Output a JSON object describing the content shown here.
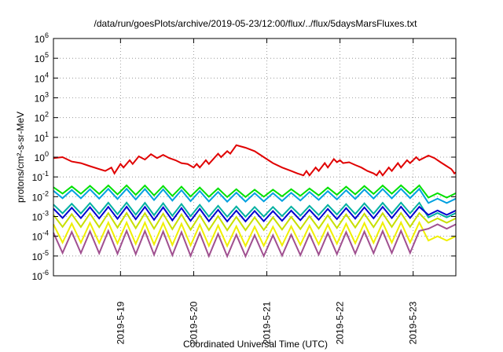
{
  "chart_data": {
    "type": "line",
    "title": "/data/run/goesPlots/archive/2019-05-23/12:00/flux/../flux/5daysMarsFluxes.txt",
    "xlabel": "Coordinated Universal Time (UTC)",
    "ylabel": "protons/cm²-s-sr-MeV",
    "y_scale": "log",
    "ylim": [
      1e-06,
      1000000.0
    ],
    "y_ticks": [
      {
        "value": 1e-06,
        "base": "10",
        "exp": "-6"
      },
      {
        "value": 1e-05,
        "base": "10",
        "exp": "-5"
      },
      {
        "value": 0.0001,
        "base": "10",
        "exp": "-4"
      },
      {
        "value": 0.001,
        "base": "10",
        "exp": "-3"
      },
      {
        "value": 0.01,
        "base": "10",
        "exp": "-2"
      },
      {
        "value": 0.1,
        "base": "10",
        "exp": "-1"
      },
      {
        "value": 1,
        "base": "10",
        "exp": "0"
      },
      {
        "value": 10,
        "base": "10",
        "exp": "1"
      },
      {
        "value": 100,
        "base": "10",
        "exp": "2"
      },
      {
        "value": 1000,
        "base": "10",
        "exp": "3"
      },
      {
        "value": 10000,
        "base": "10",
        "exp": "4"
      },
      {
        "value": 100000,
        "base": "10",
        "exp": "5"
      },
      {
        "value": 1000000,
        "base": "10",
        "exp": "6"
      }
    ],
    "xlim": [
      "2019-05-18 02:00",
      "2019-05-23 14:00"
    ],
    "x_ticks": [
      "2019-5-19",
      "2019-5-20",
      "2019-5-21",
      "2019-5-22",
      "2019-5-23"
    ],
    "grid": true,
    "legend": "none",
    "series": [
      {
        "color": "#e00000",
        "width": 2,
        "points": [
          [
            "2019-05-18 02:00",
            0.9
          ],
          [
            "2019-05-18 05:00",
            1.0
          ],
          [
            "2019-05-18 08:00",
            0.6
          ],
          [
            "2019-05-18 11:00",
            0.5
          ],
          [
            "2019-05-18 14:00",
            0.35
          ],
          [
            "2019-05-18 17:00",
            0.25
          ],
          [
            "2019-05-18 19:00",
            0.2
          ],
          [
            "2019-05-18 21:00",
            0.3
          ],
          [
            "2019-05-18 22:00",
            0.15
          ],
          [
            "2019-05-19 00:00",
            0.45
          ],
          [
            "2019-05-19 01:00",
            0.3
          ],
          [
            "2019-05-19 03:00",
            0.7
          ],
          [
            "2019-05-19 04:00",
            0.45
          ],
          [
            "2019-05-19 06:00",
            1.1
          ],
          [
            "2019-05-19 08:00",
            0.75
          ],
          [
            "2019-05-19 10:00",
            1.4
          ],
          [
            "2019-05-19 12:00",
            0.9
          ],
          [
            "2019-05-19 14:00",
            1.3
          ],
          [
            "2019-05-19 16:00",
            0.9
          ],
          [
            "2019-05-19 18:00",
            0.7
          ],
          [
            "2019-05-19 20:00",
            0.5
          ],
          [
            "2019-05-19 22:00",
            0.45
          ],
          [
            "2019-05-20 00:00",
            0.3
          ],
          [
            "2019-05-20 01:00",
            0.45
          ],
          [
            "2019-05-20 02:00",
            0.3
          ],
          [
            "2019-05-20 04:00",
            0.7
          ],
          [
            "2019-05-20 05:00",
            0.45
          ],
          [
            "2019-05-20 08:00",
            1.5
          ],
          [
            "2019-05-20 09:00",
            1.0
          ],
          [
            "2019-05-20 11:00",
            2.0
          ],
          [
            "2019-05-20 12:00",
            1.5
          ],
          [
            "2019-05-20 14:00",
            4.0
          ],
          [
            "2019-05-20 17:00",
            3.0
          ],
          [
            "2019-05-20 20:00",
            2.0
          ],
          [
            "2019-05-20 23:00",
            1.0
          ],
          [
            "2019-05-21 02:00",
            0.5
          ],
          [
            "2019-05-21 05:00",
            0.3
          ],
          [
            "2019-05-21 08:00",
            0.2
          ],
          [
            "2019-05-21 10:00",
            0.15
          ],
          [
            "2019-05-21 12:00",
            0.12
          ],
          [
            "2019-05-21 13:00",
            0.2
          ],
          [
            "2019-05-21 14:00",
            0.12
          ],
          [
            "2019-05-21 16:00",
            0.3
          ],
          [
            "2019-05-21 17:00",
            0.2
          ],
          [
            "2019-05-21 19:00",
            0.5
          ],
          [
            "2019-05-21 20:00",
            0.3
          ],
          [
            "2019-05-21 22:00",
            0.8
          ],
          [
            "2019-05-21 23:00",
            0.55
          ],
          [
            "2019-05-22 00:00",
            0.7
          ],
          [
            "2019-05-22 01:00",
            0.5
          ],
          [
            "2019-05-22 03:00",
            0.55
          ],
          [
            "2019-05-22 05:00",
            0.4
          ],
          [
            "2019-05-22 07:00",
            0.3
          ],
          [
            "2019-05-22 09:00",
            0.2
          ],
          [
            "2019-05-22 11:00",
            0.15
          ],
          [
            "2019-05-22 12:00",
            0.12
          ],
          [
            "2019-05-22 13:00",
            0.2
          ],
          [
            "2019-05-22 14:00",
            0.12
          ],
          [
            "2019-05-22 16:00",
            0.3
          ],
          [
            "2019-05-22 17:00",
            0.2
          ],
          [
            "2019-05-22 19:00",
            0.5
          ],
          [
            "2019-05-22 20:00",
            0.3
          ],
          [
            "2019-05-22 22:00",
            0.7
          ],
          [
            "2019-05-22 23:00",
            0.5
          ],
          [
            "2019-05-23 01:00",
            1.0
          ],
          [
            "2019-05-23 02:00",
            0.7
          ],
          [
            "2019-05-23 05:00",
            1.2
          ],
          [
            "2019-05-23 07:00",
            0.9
          ],
          [
            "2019-05-23 09:00",
            0.55
          ],
          [
            "2019-05-23 11:00",
            0.35
          ],
          [
            "2019-05-23 12:30",
            0.25
          ],
          [
            "2019-05-23 13:00",
            0.2
          ],
          [
            "2019-05-23 13:30",
            0.15
          ],
          [
            "2019-05-23 14:00",
            0.17
          ]
        ]
      },
      {
        "color": "#00e000",
        "width": 2,
        "base": 0.03,
        "low": 0.012,
        "end": 0.015
      },
      {
        "color": "#00a0e0",
        "width": 2,
        "base": 0.02,
        "low": 0.007,
        "end": 0.008
      },
      {
        "color": "#00b0a0",
        "width": 2,
        "base": 0.004,
        "low": 0.0012,
        "end": 0.0015
      },
      {
        "color": "#0000d0",
        "width": 2,
        "base": 0.0025,
        "low": 0.0007,
        "end": 0.002
      },
      {
        "color": "#c8e000",
        "width": 2,
        "base": 0.0012,
        "low": 0.00025,
        "end": 0.0008
      },
      {
        "color": "#f0f000",
        "width": 2,
        "base": 0.0004,
        "low": 4e-05,
        "end": 0.0001
      },
      {
        "color": "#a05090",
        "width": 2,
        "base": 0.00015,
        "low": 1.2e-05,
        "end": 0.0004
      }
    ]
  }
}
